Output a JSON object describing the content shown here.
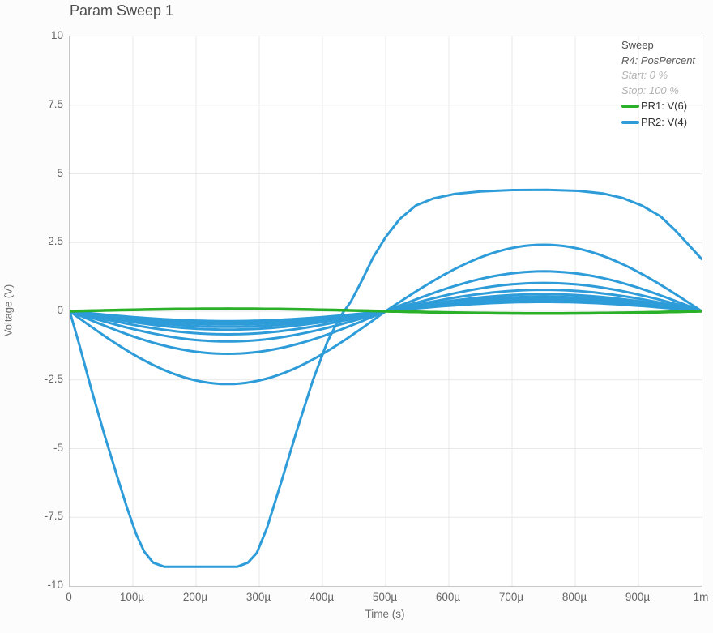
{
  "legend": {
    "header": "Sweep",
    "param": "R4: PosPercent",
    "start": "Start: 0 %",
    "stop": "Stop: 100 %",
    "entries": [
      {
        "label": "PR1: V(6)",
        "color": "#2bb029"
      },
      {
        "label": "PR2: V(4)",
        "color": "#2d9cd9"
      }
    ]
  },
  "chart_data": {
    "type": "line",
    "title": "Param Sweep 1",
    "xlabel": "Time (s)",
    "ylabel": "Voltage (V)",
    "x_range_seconds": [
      0,
      0.001
    ],
    "ylim": [
      -10,
      10
    ],
    "grid": true,
    "grid_color": "#e9e9e9",
    "axis_border_color": "#c7c7c7",
    "x_tick_labels": [
      "0",
      "100µ",
      "200µ",
      "300µ",
      "400µ",
      "500µ",
      "600µ",
      "700µ",
      "800µ",
      "900µ",
      "1m"
    ],
    "y_tick_labels": [
      "10",
      "7.5",
      "5",
      "2.5",
      "0",
      "-2.5",
      "-5",
      "-7.5",
      "-10"
    ],
    "legend_position": "top-right",
    "series": [
      {
        "name": "PR2: V(4)",
        "color": "#2d9cd9",
        "note": "family of sweep traces, one per R4 PosPercent step; half-sine dip 0-500µs then half-sine peak 500µs-1ms",
        "sweep_curves": [
          {
            "shape": "points",
            "points_t_us_v": [
              [
                0,
                0
              ],
              [
                15,
                -1.2
              ],
              [
                35,
                -2.9
              ],
              [
                55,
                -4.5
              ],
              [
                75,
                -6.0
              ],
              [
                90,
                -7.1
              ],
              [
                105,
                -8.1
              ],
              [
                118,
                -8.75
              ],
              [
                132,
                -9.15
              ],
              [
                150,
                -9.3
              ],
              [
                265,
                -9.3
              ],
              [
                282,
                -9.15
              ],
              [
                296,
                -8.8
              ],
              [
                312,
                -7.9
              ],
              [
                335,
                -6.2
              ],
              [
                360,
                -4.3
              ],
              [
                385,
                -2.5
              ],
              [
                408,
                -1.1
              ],
              [
                428,
                -0.2
              ],
              [
                445,
                0.35
              ],
              [
                462,
                1.1
              ],
              [
                480,
                1.95
              ],
              [
                500,
                2.7
              ],
              [
                522,
                3.35
              ],
              [
                548,
                3.85
              ],
              [
                575,
                4.1
              ],
              [
                610,
                4.27
              ],
              [
                650,
                4.36
              ],
              [
                700,
                4.41
              ],
              [
                755,
                4.42
              ],
              [
                805,
                4.38
              ],
              [
                845,
                4.28
              ],
              [
                875,
                4.12
              ],
              [
                905,
                3.85
              ],
              [
                935,
                3.45
              ],
              [
                958,
                2.95
              ],
              [
                978,
                2.45
              ],
              [
                1000,
                1.9
              ]
            ]
          },
          {
            "shape": "sine",
            "peak_first_half": -2.65,
            "peak_second_half": 2.42
          },
          {
            "shape": "sine",
            "peak_first_half": -1.55,
            "peak_second_half": 1.45
          },
          {
            "shape": "sine",
            "peak_first_half": -1.1,
            "peak_second_half": 1.03
          },
          {
            "shape": "sine",
            "peak_first_half": -0.84,
            "peak_second_half": 0.78
          },
          {
            "shape": "sine",
            "peak_first_half": -0.67,
            "peak_second_half": 0.62
          },
          {
            "shape": "sine",
            "peak_first_half": -0.57,
            "peak_second_half": 0.53
          },
          {
            "shape": "sine",
            "peak_first_half": -0.48,
            "peak_second_half": 0.45
          },
          {
            "shape": "sine",
            "peak_first_half": -0.41,
            "peak_second_half": 0.39
          },
          {
            "shape": "sine",
            "peak_first_half": -0.36,
            "peak_second_half": 0.34
          }
        ]
      },
      {
        "name": "PR1: V(6)",
        "color": "#2bb029",
        "shape": "sine",
        "peak_first_half": 0.09,
        "peak_second_half": -0.08
      }
    ]
  }
}
